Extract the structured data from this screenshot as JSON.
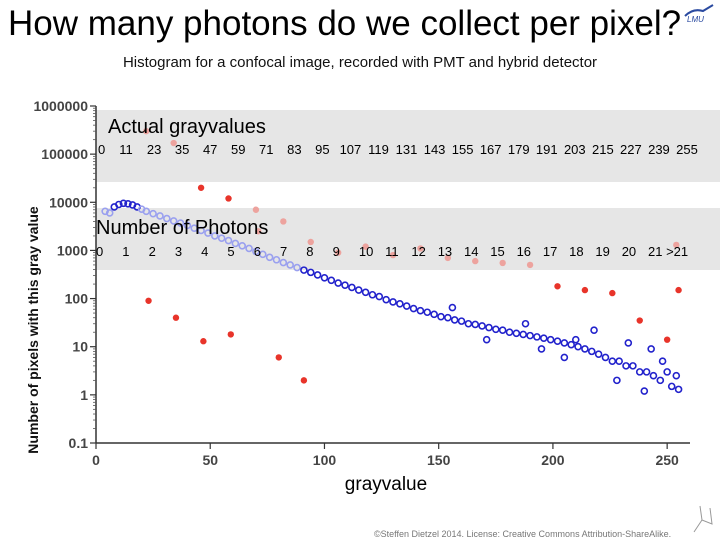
{
  "title": "How many photons do we collect per pixel?",
  "subtitle": "Histogram for a confocal image, recorded with PMT and hybrid detector",
  "credit": "©Steffen Dietzel 2014. License: Creative Commons Attribution-ShareAlike.",
  "colors": {
    "pmt_red": "#e8342a",
    "pmt_red_faded": "#eda39e",
    "hybrid_blue": "#2222cc",
    "hybrid_blue_faded": "#9aa0ef",
    "band": "#e6e6e6"
  },
  "chart_data": {
    "type": "scatter",
    "title": "",
    "xlabel": "grayvalue",
    "ylabel": "Number of pixels with this gray value",
    "xlim": [
      0,
      260
    ],
    "ylim": [
      0.1,
      1000000
    ],
    "yscale": "log",
    "x_ticks": [
      0,
      50,
      100,
      150,
      200,
      250
    ],
    "y_ticks": [
      0.1,
      1,
      10,
      100,
      1000,
      10000,
      100000,
      1000000
    ],
    "y_tick_labels": [
      "0.1",
      "1",
      "10",
      "100",
      "1000",
      "10000",
      "100000",
      "1000000"
    ],
    "band_labels": {
      "actual_title": "Actual grayvalues",
      "actual": [
        "0",
        "11",
        "23",
        "35",
        "47",
        "59",
        "71",
        "83",
        "95",
        "107",
        "119",
        "131",
        "143",
        "155",
        "167",
        "179",
        "191",
        "203",
        "215",
        "227",
        "239",
        "255"
      ],
      "photons_title": "Number of Photons",
      "photons": [
        "0",
        "1",
        "2",
        "3",
        "4",
        "5",
        "6",
        "7",
        "8",
        "9",
        "10",
        "11",
        "12",
        "13",
        "14",
        "15",
        "16",
        "17",
        "18",
        "19",
        "20",
        "21 >21"
      ]
    },
    "series": [
      {
        "name": "PMT",
        "points": [
          [
            22,
            300000
          ],
          [
            23,
            90
          ],
          [
            34,
            170000
          ],
          [
            35,
            40
          ],
          [
            46,
            20000
          ],
          [
            47,
            13
          ],
          [
            58,
            12000
          ],
          [
            59,
            18
          ],
          [
            70,
            7000
          ],
          [
            71,
            2500
          ],
          [
            80,
            6
          ],
          [
            82,
            4000
          ],
          [
            91,
            2
          ],
          [
            94,
            1500
          ],
          [
            106,
            900
          ],
          [
            118,
            1200
          ],
          [
            130,
            800
          ],
          [
            142,
            1100
          ],
          [
            154,
            700
          ],
          [
            166,
            600
          ],
          [
            178,
            550
          ],
          [
            190,
            500
          ],
          [
            202,
            180
          ],
          [
            214,
            150
          ],
          [
            226,
            130
          ],
          [
            238,
            35
          ],
          [
            250,
            14
          ],
          [
            254,
            1300
          ],
          [
            255,
            150
          ]
        ]
      },
      {
        "name": "Hybrid detector",
        "points": [
          [
            4,
            6500
          ],
          [
            6,
            6000
          ],
          [
            8,
            8000
          ],
          [
            10,
            9000
          ],
          [
            12,
            9500
          ],
          [
            14,
            9300
          ],
          [
            16,
            8800
          ],
          [
            18,
            8000
          ],
          [
            20,
            7200
          ],
          [
            22,
            6500
          ],
          [
            25,
            5800
          ],
          [
            28,
            5200
          ],
          [
            31,
            4600
          ],
          [
            34,
            4100
          ],
          [
            37,
            3700
          ],
          [
            40,
            3300
          ],
          [
            43,
            2900
          ],
          [
            46,
            2600
          ],
          [
            49,
            2300
          ],
          [
            52,
            2000
          ],
          [
            55,
            1800
          ],
          [
            58,
            1600
          ],
          [
            61,
            1400
          ],
          [
            64,
            1250
          ],
          [
            67,
            1100
          ],
          [
            70,
            950
          ],
          [
            73,
            830
          ],
          [
            76,
            720
          ],
          [
            79,
            640
          ],
          [
            82,
            560
          ],
          [
            85,
            500
          ],
          [
            88,
            440
          ],
          [
            91,
            390
          ],
          [
            94,
            350
          ],
          [
            97,
            310
          ],
          [
            100,
            270
          ],
          [
            103,
            240
          ],
          [
            106,
            210
          ],
          [
            109,
            190
          ],
          [
            112,
            170
          ],
          [
            115,
            150
          ],
          [
            118,
            135
          ],
          [
            121,
            120
          ],
          [
            124,
            110
          ],
          [
            127,
            95
          ],
          [
            130,
            85
          ],
          [
            133,
            78
          ],
          [
            136,
            70
          ],
          [
            139,
            62
          ],
          [
            142,
            56
          ],
          [
            145,
            52
          ],
          [
            148,
            47
          ],
          [
            151,
            42
          ],
          [
            154,
            40
          ],
          [
            157,
            36
          ],
          [
            160,
            34
          ],
          [
            163,
            30
          ],
          [
            166,
            29
          ],
          [
            169,
            27
          ],
          [
            172,
            25
          ],
          [
            175,
            23
          ],
          [
            178,
            22
          ],
          [
            181,
            20
          ],
          [
            184,
            19
          ],
          [
            187,
            18
          ],
          [
            190,
            17
          ],
          [
            193,
            16
          ],
          [
            196,
            15
          ],
          [
            199,
            14
          ],
          [
            202,
            13
          ],
          [
            205,
            12
          ],
          [
            208,
            11
          ],
          [
            211,
            10
          ],
          [
            214,
            9
          ],
          [
            217,
            8
          ],
          [
            220,
            7
          ],
          [
            223,
            6
          ],
          [
            226,
            5
          ],
          [
            229,
            5
          ],
          [
            232,
            4
          ],
          [
            235,
            4
          ],
          [
            238,
            3
          ],
          [
            241,
            3
          ],
          [
            244,
            2.5
          ],
          [
            247,
            2
          ],
          [
            250,
            3
          ],
          [
            252,
            1.5
          ],
          [
            254,
            2.5
          ],
          [
            255,
            1.3
          ],
          [
            156,
            65
          ],
          [
            171,
            14
          ],
          [
            188,
            30
          ],
          [
            205,
            6
          ],
          [
            218,
            22
          ],
          [
            228,
            2
          ],
          [
            233,
            12
          ],
          [
            240,
            1.2
          ],
          [
            243,
            9
          ],
          [
            248,
            5
          ],
          [
            210,
            14
          ],
          [
            195,
            9
          ]
        ]
      }
    ]
  }
}
